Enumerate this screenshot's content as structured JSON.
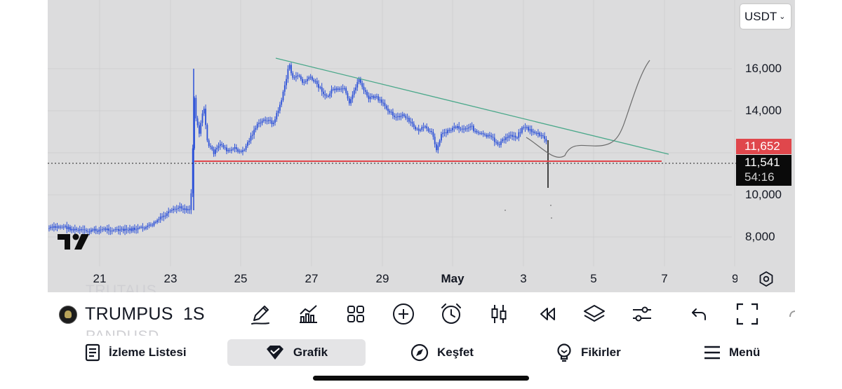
{
  "chart": {
    "currency": "USDT",
    "y_axis_labels": [
      "16,000",
      "14,000",
      "10,000",
      "8,000"
    ],
    "x_axis_labels": [
      "21",
      "23",
      "25",
      "27",
      "29",
      "May",
      "3",
      "5",
      "7",
      "9"
    ],
    "last_price_red": "11,652",
    "last_price": "11,541",
    "countdown": "54:16",
    "colors": {
      "background": "#dcdcdd",
      "candle": "#2b50d8",
      "trendline": "#4aa88a",
      "support": "#e0474c",
      "projection": "#6b6b6b"
    }
  },
  "toolbar": {
    "symbol": "TRUMPUS",
    "interval": "1S",
    "ghost_above": "TRUTAUS",
    "ghost_below": "PANDUSD",
    "tools": [
      "pen-icon",
      "indicators-icon",
      "grid-icon",
      "plus-icon",
      "alarm-icon",
      "candles-icon",
      "rewind-icon",
      "layers-icon",
      "sliders-icon",
      "undo-icon",
      "fullscreen-icon"
    ]
  },
  "nav": {
    "items": [
      {
        "label": "İzleme Listesi",
        "icon": "list-icon"
      },
      {
        "label": "Grafik",
        "icon": "chart-diamond-icon"
      },
      {
        "label": "Keşfet",
        "icon": "compass-icon"
      },
      {
        "label": "Fikirler",
        "icon": "bulb-icon"
      },
      {
        "label": "Menü",
        "icon": "menu-icon"
      }
    ],
    "active": "Grafik"
  }
}
